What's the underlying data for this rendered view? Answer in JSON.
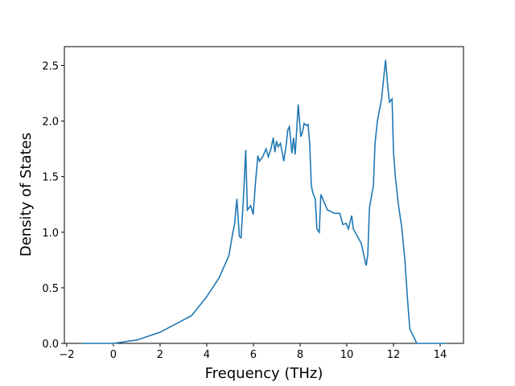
{
  "chart_data": {
    "type": "line",
    "xlabel": "Frequency (THz)",
    "ylabel": "Density of States",
    "series": [
      {
        "color": "#1f77b4",
        "x": [
          -1.35,
          0,
          1.0,
          2.0,
          3.35,
          4.0,
          4.53,
          4.95,
          5.12,
          5.19,
          5.29,
          5.4,
          5.47,
          5.57,
          5.67,
          5.74,
          5.88,
          5.99,
          6.09,
          6.19,
          6.26,
          6.4,
          6.54,
          6.64,
          6.75,
          6.85,
          6.92,
          6.99,
          7.06,
          7.16,
          7.3,
          7.4,
          7.47,
          7.54,
          7.65,
          7.72,
          7.79,
          7.92,
          8.03,
          8.1,
          8.17,
          8.27,
          8.34,
          8.41,
          8.48,
          8.55,
          8.65,
          8.72,
          8.82,
          8.89,
          9.17,
          9.48,
          9.7,
          9.83,
          9.97,
          10.07,
          10.21,
          10.28,
          10.49,
          10.62,
          10.83,
          10.9,
          10.97,
          11.14,
          11.21,
          11.31,
          11.49,
          11.66,
          11.76,
          11.83,
          11.94,
          12.0,
          12.08,
          12.21,
          12.35,
          12.49,
          12.6,
          12.7,
          13.0,
          14.25
        ],
        "values": [
          0,
          0,
          0.03,
          0.1,
          0.25,
          0.42,
          0.59,
          0.79,
          1.0,
          1.07,
          1.3,
          0.96,
          0.95,
          1.3,
          1.74,
          1.2,
          1.24,
          1.16,
          1.45,
          1.69,
          1.64,
          1.68,
          1.75,
          1.68,
          1.75,
          1.85,
          1.72,
          1.82,
          1.77,
          1.8,
          1.64,
          1.78,
          1.92,
          1.95,
          1.71,
          1.85,
          1.7,
          2.15,
          1.86,
          1.9,
          1.98,
          1.96,
          1.97,
          1.8,
          1.42,
          1.35,
          1.3,
          1.03,
          1.0,
          1.34,
          1.2,
          1.17,
          1.17,
          1.07,
          1.08,
          1.03,
          1.15,
          1.03,
          0.95,
          0.9,
          0.7,
          0.8,
          1.22,
          1.42,
          1.8,
          2.0,
          2.2,
          2.55,
          2.3,
          2.17,
          2.2,
          1.72,
          1.5,
          1.25,
          1.05,
          0.75,
          0.4,
          0.13,
          0,
          0
        ]
      }
    ],
    "xlim": [
      -2.1,
      15.0
    ],
    "ylim": [
      0,
      2.67
    ],
    "xticks": [
      {
        "value": -2,
        "label": "−2"
      },
      0,
      2,
      4,
      6,
      8,
      10,
      12,
      14
    ],
    "yticks": [
      {
        "value": 0,
        "label": "0.0"
      },
      0.5,
      1.0,
      1.5,
      2.0,
      2.5
    ]
  }
}
